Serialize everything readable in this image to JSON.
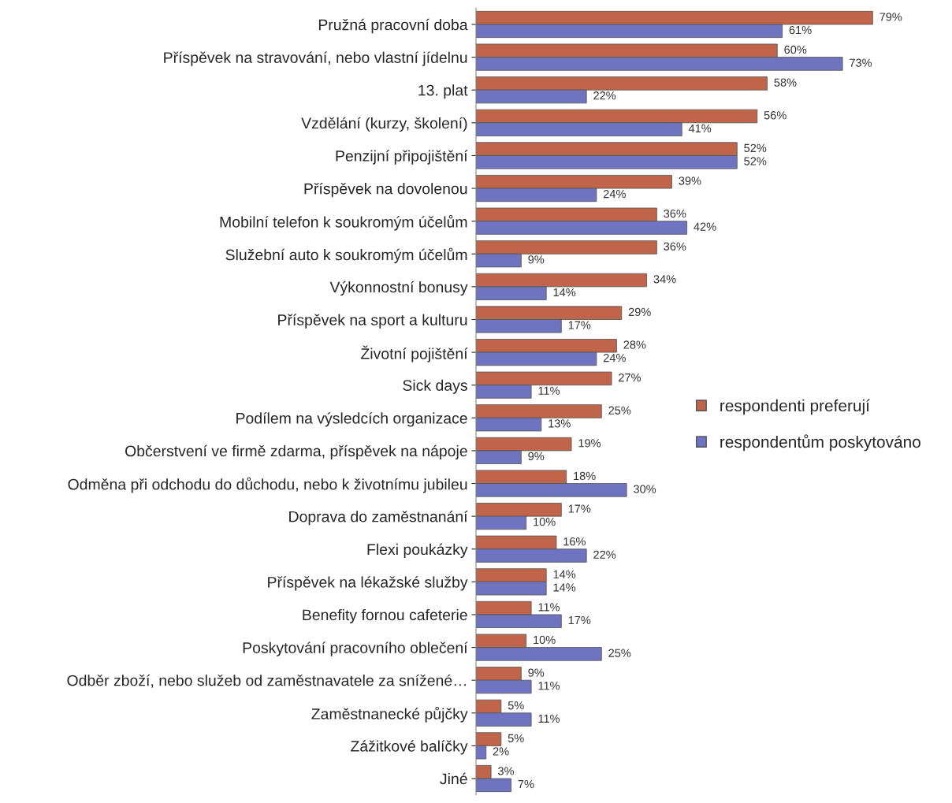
{
  "chart_data": {
    "type": "bar",
    "orientation": "horizontal",
    "legend": "right",
    "grid": false,
    "categories": [
      "Pružná pracovní doba",
      "Příspěvek na stravování, nebo vlastní jídelnu",
      "13. plat",
      "Vzdělání (kurzy, školení)",
      "Penzijní připojištění",
      "Příspěvek na dovolenou",
      "Mobilní telefon k soukromým účelům",
      "Služební auto k soukromým účelům",
      "Výkonnostní bonusy",
      "Příspěvek na sport a kulturu",
      "Životní pojištění",
      "Sick days",
      "Podílem na výsledcích organizace",
      "Občerstvení ve firmě zdarma, příspěvek na nápoje",
      "Odměna při odchodu do důchodu, nebo k životnímu jubileu",
      "Doprava do zaměstnanání",
      "Flexi poukázky",
      "Příspěvek na lékažské služby",
      "Benefity fornou cafeterie",
      "Poskytování pracovního oblečení",
      "Odběr zboží, nebo služeb od zaměstnavatele za snížené…",
      "Zaměstnanecké půjčky",
      "Zážitkové balíčky",
      "Jiné"
    ],
    "series": [
      {
        "name": "respondenti preferují",
        "color": "#c0654a",
        "values": [
          79,
          60,
          58,
          56,
          52,
          39,
          36,
          36,
          34,
          29,
          28,
          27,
          25,
          19,
          18,
          17,
          16,
          14,
          11,
          10,
          9,
          5,
          5,
          3
        ],
        "value_labels": [
          "79%",
          "60%",
          "58%",
          "56%",
          "52%",
          "39%",
          "36%",
          "36%",
          "34%",
          "29%",
          "28%",
          "27%",
          "25%",
          "19%",
          "18%",
          "17%",
          "16%",
          "14%",
          "11%",
          "10%",
          "9%",
          "5%",
          "5%",
          "3%"
        ]
      },
      {
        "name": "respondentům poskytováno",
        "color": "#6f74c0",
        "values": [
          61,
          73,
          22,
          41,
          52,
          24,
          42,
          9,
          14,
          17,
          24,
          11,
          13,
          9,
          30,
          10,
          22,
          14,
          17,
          25,
          11,
          11,
          2,
          7
        ],
        "value_labels": [
          "61%",
          "73%",
          "22%",
          "41%",
          "52%",
          "24%",
          "42%",
          "9%",
          "14%",
          "17%",
          "24%",
          "11%",
          "13%",
          "9%",
          "30%",
          "10%",
          "22%",
          "14%",
          "17%",
          "25%",
          "11%",
          "11%",
          "2%",
          "7%"
        ]
      }
    ]
  }
}
